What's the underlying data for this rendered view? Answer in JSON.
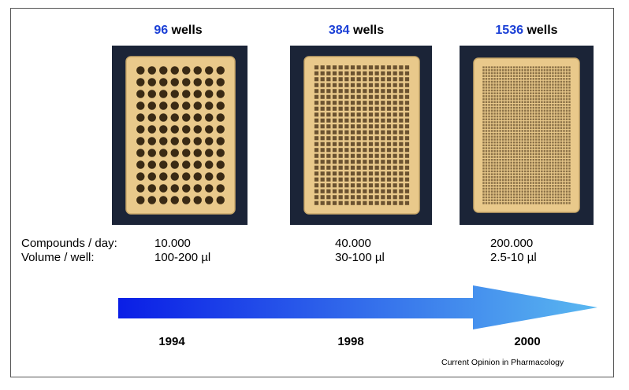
{
  "plates": [
    {
      "count": "96",
      "suffix": " wells",
      "compounds": "10.000",
      "volume": "100-200 µl",
      "year": "1994"
    },
    {
      "count": "384",
      "suffix": " wells",
      "compounds": "40.000",
      "volume": "30-100 µl",
      "year": "1998"
    },
    {
      "count": "1536",
      "suffix": " wells",
      "compounds": "200.000",
      "volume": "2.5-10 µl",
      "year": "2000"
    }
  ],
  "labels": {
    "compounds": "Compounds / day:",
    "volume": "Volume / well:"
  },
  "source": "Current Opinion in Pharmacology",
  "colors": {
    "well_count": "#1a3fd6",
    "arrow_start": "#0a1ee6",
    "arrow_end": "#5ab8f0",
    "plate": "#e9c98b",
    "background_photo": "#1b2437"
  }
}
